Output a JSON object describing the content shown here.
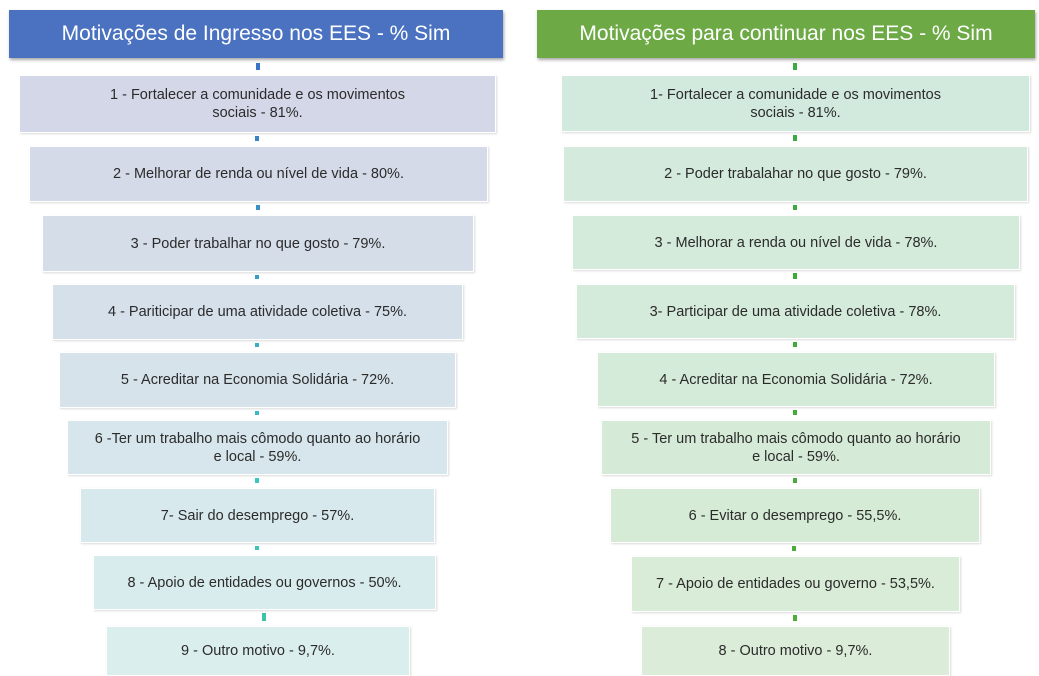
{
  "left": {
    "title": "Motivações de Ingresso nos EES - % Sim",
    "items": [
      "1 - Fortalecer a comunidade e os movimentos sociais - 81%.",
      "2 - Melhorar de renda ou nível de vida - 80%.",
      "3 - Poder trabalhar no que gosto - 79%.",
      "4 - Pariticipar de uma atividade coletiva - 75%.",
      "5 - Acreditar na Economia Solidária - 72%.",
      "6 -Ter um trabalho mais cômodo quanto ao horário e local - 59%.",
      "7- Sair do desemprego - 57%.",
      "8 - Apoio de entidades ou governos - 50%.",
      "9 - Outro motivo - 9,7%."
    ]
  },
  "right": {
    "title": "Motivações para continuar nos EES - % Sim",
    "items": [
      "1- Fortalecer a comunidade e os movimentos sociais - 81%.",
      "2 - Poder trabalahar no que gosto - 79%.",
      "3 - Melhorar a renda ou nível de vida - 78%.",
      "3- Participar de uma atividade coletiva - 78%.",
      "4 - Acreditar na Economia Solidária - 72%.",
      "5 - Ter um trabalho mais cômodo quanto ao horário e local - 59%.",
      "6 - Evitar o desemprego - 55,5%.",
      "7 - Apoio de entidades ou governo - 53,5%.",
      "8 - Outro motivo - 9,7%."
    ]
  }
}
